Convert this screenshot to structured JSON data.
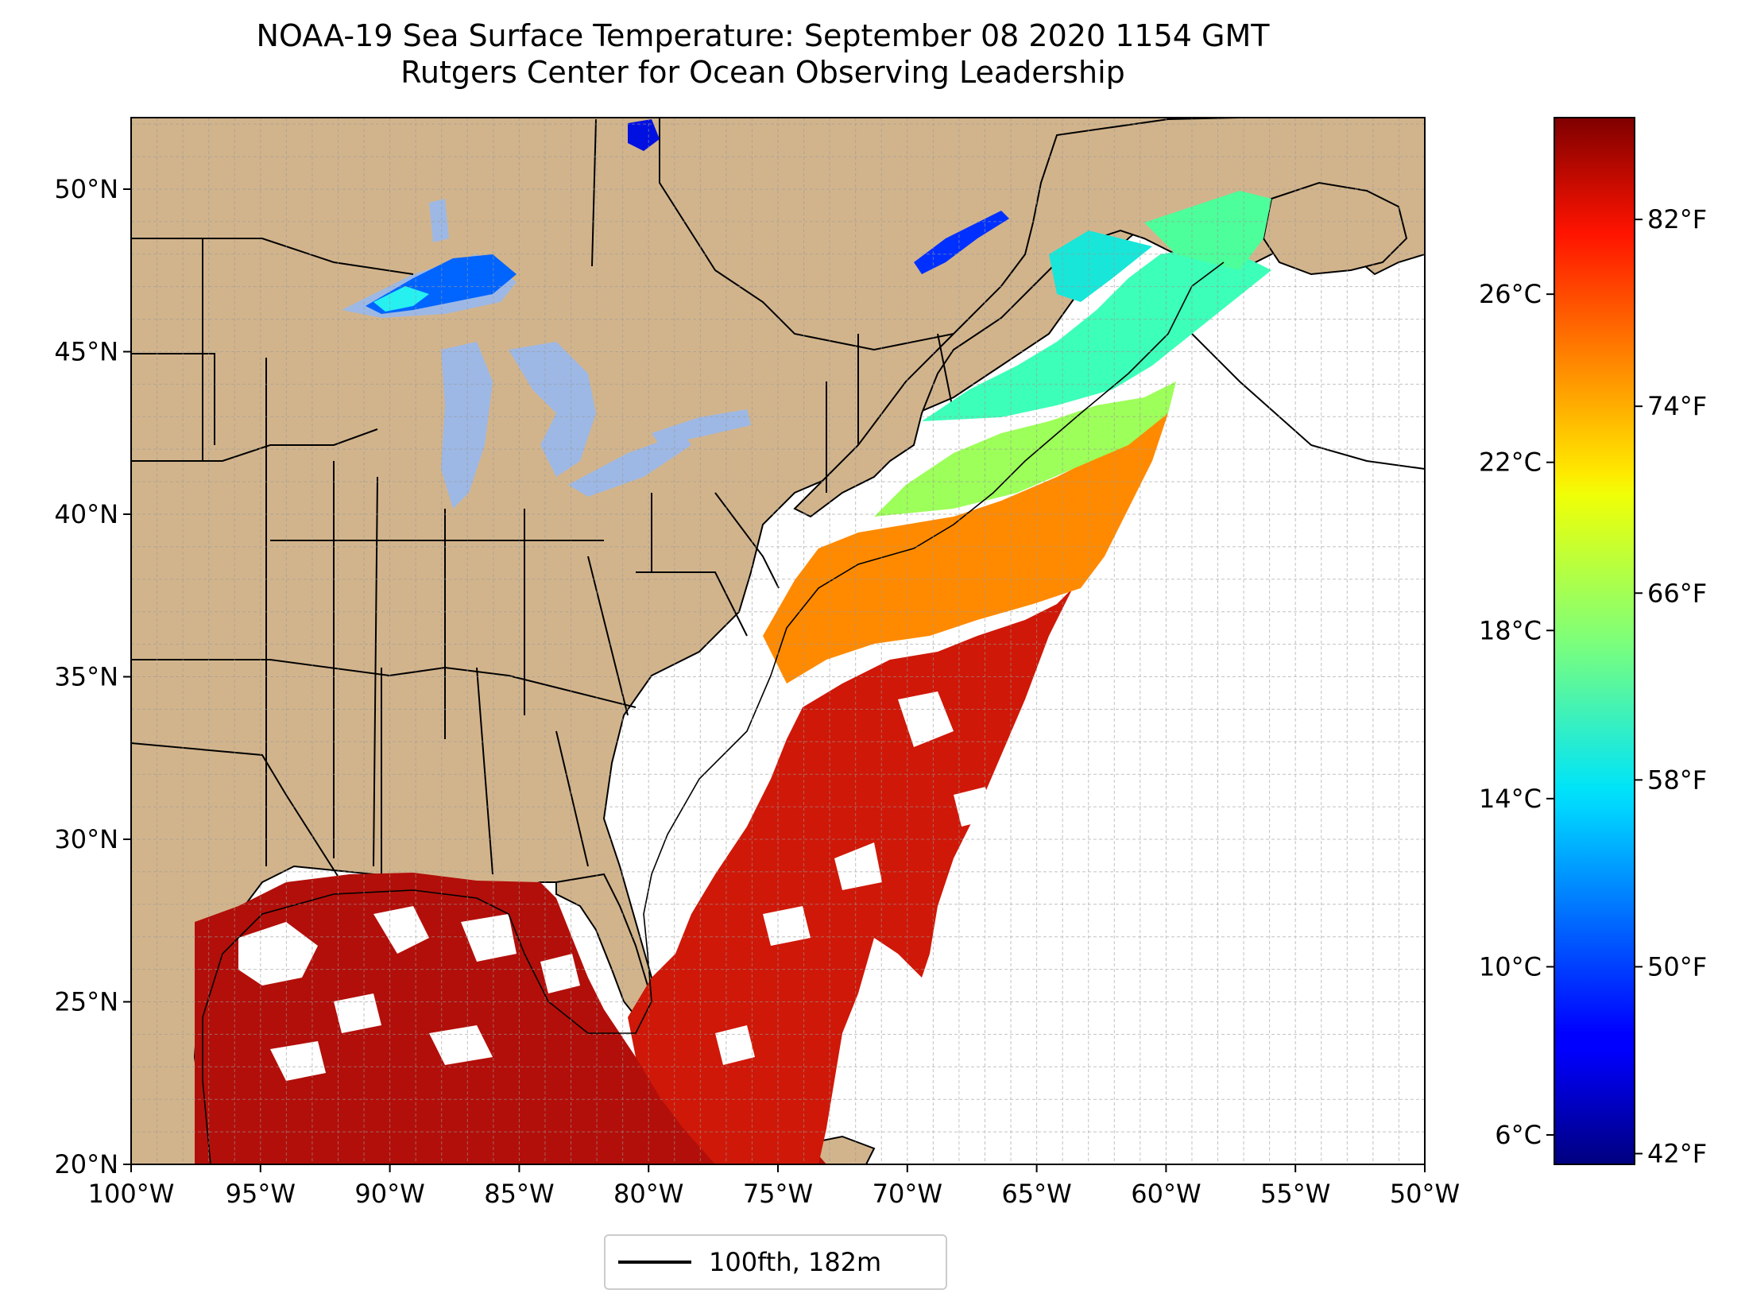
{
  "title": {
    "line1": "NOAA-19 Sea Surface Temperature: September 08 2020 1154 GMT",
    "line2": "Rutgers Center for Ocean Observing Leadership"
  },
  "map": {
    "lon_range": [
      -100,
      -50
    ],
    "lat_range": [
      20,
      52.2
    ],
    "x_ticks": [
      "100°W",
      "95°W",
      "90°W",
      "85°W",
      "80°W",
      "75°W",
      "70°W",
      "65°W",
      "60°W",
      "55°W",
      "50°W"
    ],
    "x_tick_values": [
      -100,
      -95,
      -90,
      -85,
      -80,
      -75,
      -70,
      -65,
      -60,
      -55,
      -50
    ],
    "y_ticks": [
      "20°N",
      "25°N",
      "30°N",
      "35°N",
      "40°N",
      "45°N",
      "50°N"
    ],
    "y_tick_values": [
      20,
      25,
      30,
      35,
      40,
      45,
      50
    ],
    "gridlines": true,
    "land_color": "#d2b48c",
    "lake_color": "#9db8e5",
    "ocean_color": "#ffffff"
  },
  "colorbar": {
    "colormap": "jet",
    "celsius_ticks": [
      "6°C",
      "10°C",
      "14°C",
      "18°C",
      "22°C",
      "26°C"
    ],
    "celsius_values": [
      6,
      10,
      14,
      18,
      22,
      26
    ],
    "fahrenheit_ticks": [
      "42°F",
      "50°F",
      "58°F",
      "66°F",
      "74°F",
      "82°F"
    ],
    "fahrenheit_values": [
      42,
      50,
      58,
      66,
      74,
      82
    ],
    "min_c": 5.3,
    "max_c": 30.2
  },
  "legend": {
    "label": "100fth, 182m",
    "line_color": "#000000"
  }
}
